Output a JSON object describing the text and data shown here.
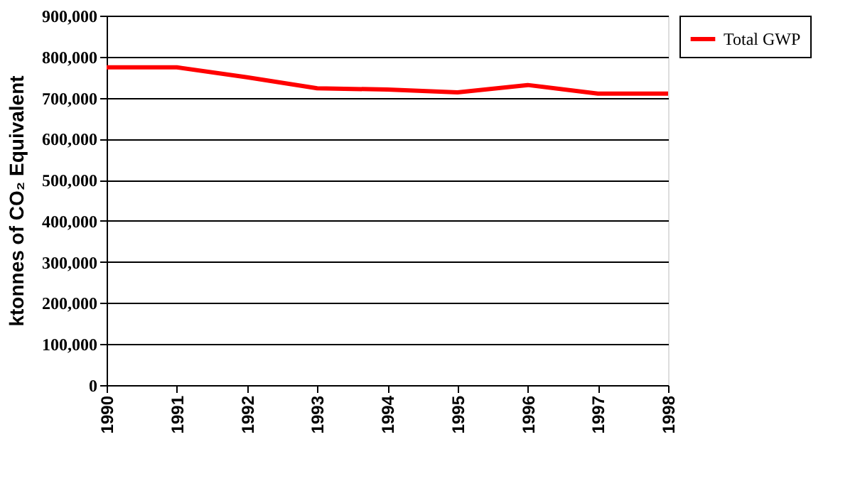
{
  "chart_data": {
    "type": "line",
    "ylabel": "ktonnes of CO₂ Equivalent",
    "x": [
      1990,
      1991,
      1992,
      1993,
      1994,
      1995,
      1996,
      1997,
      1998
    ],
    "series": [
      {
        "name": "Total GWP",
        "color": "#ff0000",
        "values": [
          774000,
          774000,
          750000,
          723000,
          720000,
          713000,
          731000,
          710000,
          710000
        ]
      }
    ],
    "xlim": [
      1990,
      1998
    ],
    "xticks": [
      1990,
      1991,
      1992,
      1993,
      1994,
      1995,
      1996,
      1997,
      1998
    ],
    "ylim": [
      0,
      900000
    ],
    "yticks": [
      {
        "value": 0,
        "label": "0"
      },
      {
        "value": 100000,
        "label": "100,000"
      },
      {
        "value": 200000,
        "label": "200,000"
      },
      {
        "value": 300000,
        "label": "300,000"
      },
      {
        "value": 400000,
        "label": "400,000"
      },
      {
        "value": 500000,
        "label": "500,000"
      },
      {
        "value": 600000,
        "label": "600,000"
      },
      {
        "value": 700000,
        "label": "700,000"
      },
      {
        "value": 800000,
        "label": "800,000"
      },
      {
        "value": 900000,
        "label": "900,000"
      }
    ],
    "grid": "y",
    "legend": "right",
    "marker": "none",
    "line_style": "solid"
  }
}
